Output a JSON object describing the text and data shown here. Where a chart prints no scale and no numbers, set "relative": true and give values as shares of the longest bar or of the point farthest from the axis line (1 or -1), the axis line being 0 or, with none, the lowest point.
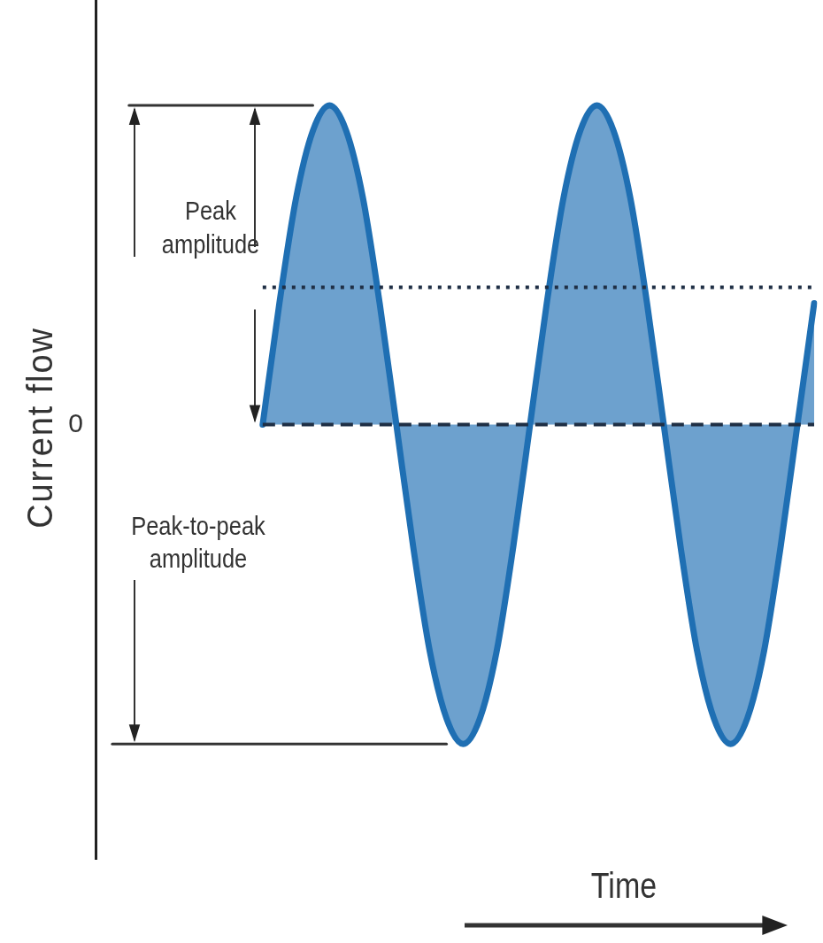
{
  "chart_data": {
    "type": "area",
    "relative": true,
    "xlabel": "Time",
    "ylabel": "Current flow",
    "categories": [
      null,
      null,
      null,
      null,
      null,
      null,
      null,
      null,
      null,
      null,
      null,
      null,
      null,
      null,
      null,
      null,
      null,
      null,
      null,
      null,
      null,
      null,
      null,
      null,
      null,
      null,
      null,
      null,
      null,
      null,
      null,
      null,
      null,
      null,
      null,
      null,
      null,
      null,
      null,
      null,
      null,
      null,
      null,
      null
    ],
    "series": [
      {
        "color": "#1f6fb3",
        "values": [
          null,
          null,
          null,
          null,
          null,
          null,
          null,
          null,
          null,
          null,
          0,
          0.38,
          0.71,
          0.92,
          1,
          0.92,
          0.71,
          0.38,
          0,
          -0.38,
          -0.71,
          -0.92,
          -1,
          -0.92,
          -0.71,
          -0.38,
          0,
          0.38,
          0.71,
          0.92,
          1,
          0.92,
          0.71,
          0.38,
          0,
          -0.38,
          -0.71,
          -0.92,
          -1,
          -0.92,
          -0.71,
          -0.38,
          0,
          0.38
        ]
      },
      {
        "type": "line",
        "color": "#333333",
        "values": [
          null,
          null,
          1,
          1,
          1,
          1,
          1,
          1,
          1,
          1,
          1,
          1,
          1,
          1,
          null,
          null,
          null,
          null,
          null,
          null,
          null,
          null,
          null,
          null,
          null,
          null,
          null,
          null,
          null,
          null,
          null,
          null,
          null,
          null,
          null,
          null,
          null,
          null,
          null,
          null,
          null,
          null,
          null,
          null
        ]
      },
      {
        "type": "line",
        "color": "#333333",
        "values": [
          null,
          -1,
          -1,
          -1,
          -1,
          -1,
          -1,
          -1,
          -1,
          -1,
          -1,
          -1,
          -1,
          -1,
          -1,
          -1,
          -1,
          -1,
          -1,
          -1,
          -1,
          -1,
          null,
          null,
          null,
          null,
          null,
          null,
          null,
          null,
          null,
          null,
          null,
          null,
          null,
          null,
          null,
          null,
          null,
          null,
          null,
          null,
          null,
          null
        ]
      }
    ],
    "ref_lines": [
      {
        "axis": "y",
        "value": 0,
        "label": "0",
        "color": "#1f2f45",
        "line_style": "dashed"
      },
      {
        "axis": "y",
        "value": 0.43,
        "label": null,
        "color": "#1f2f45",
        "line_style": "dotted"
      }
    ],
    "annotations": [
      "Peak amplitude",
      "Peak-to-peak amplitude"
    ],
    "grid": false,
    "legend": false,
    "marker": "none",
    "line_style": "solid"
  }
}
